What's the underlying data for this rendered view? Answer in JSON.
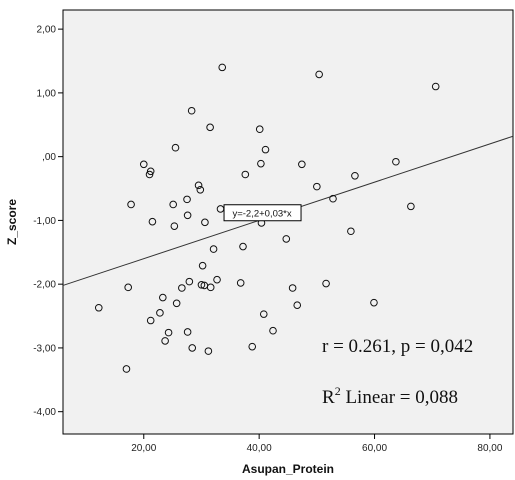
{
  "chart_data": {
    "type": "scatter",
    "xlabel": "Asupan_Protein",
    "ylabel": "Z_score",
    "xlim": [
      6,
      84
    ],
    "ylim": [
      -4.35,
      2.3
    ],
    "x_ticks": [
      "20,00",
      "40,00",
      "60,00",
      "80,00"
    ],
    "x_tick_values": [
      20,
      40,
      60,
      80
    ],
    "y_ticks": [
      "2,00",
      "1,00",
      ",00",
      "-1,00",
      "-2,00",
      "-3,00",
      "-4,00"
    ],
    "y_tick_values": [
      2,
      1,
      0,
      -1,
      -2,
      -3,
      -4
    ],
    "grid": false,
    "marker": "open-circle",
    "fit_line": {
      "intercept": -2.2,
      "slope": 0.03,
      "label": "y=-2,2+0,03*x"
    },
    "annotations": {
      "correlation": "r = 0.261, p = 0,042",
      "r2_prefix": "R",
      "r2_sup": "2",
      "r2_suffix": " Linear = 0,088"
    },
    "points": [
      {
        "x": 12.2,
        "y": -2.37
      },
      {
        "x": 17.0,
        "y": -3.33
      },
      {
        "x": 17.3,
        "y": -2.05
      },
      {
        "x": 17.8,
        "y": -0.75
      },
      {
        "x": 20.0,
        "y": -0.12
      },
      {
        "x": 21.0,
        "y": -0.28
      },
      {
        "x": 21.2,
        "y": -0.23
      },
      {
        "x": 21.5,
        "y": -1.02
      },
      {
        "x": 21.2,
        "y": -2.57
      },
      {
        "x": 22.8,
        "y": -2.45
      },
      {
        "x": 23.3,
        "y": -2.21
      },
      {
        "x": 23.7,
        "y": -2.89
      },
      {
        "x": 24.3,
        "y": -2.76
      },
      {
        "x": 25.1,
        "y": -0.75
      },
      {
        "x": 25.3,
        "y": -1.09
      },
      {
        "x": 25.5,
        "y": 0.14
      },
      {
        "x": 25.7,
        "y": -2.3
      },
      {
        "x": 26.6,
        "y": -2.06
      },
      {
        "x": 27.5,
        "y": -0.67
      },
      {
        "x": 27.6,
        "y": -0.92
      },
      {
        "x": 27.6,
        "y": -2.75
      },
      {
        "x": 27.9,
        "y": -1.96
      },
      {
        "x": 28.3,
        "y": 0.72
      },
      {
        "x": 28.4,
        "y": -3.0
      },
      {
        "x": 29.5,
        "y": -0.45
      },
      {
        "x": 29.8,
        "y": -0.52
      },
      {
        "x": 30.0,
        "y": -2.01
      },
      {
        "x": 30.2,
        "y": -1.71
      },
      {
        "x": 30.5,
        "y": -2.02
      },
      {
        "x": 30.6,
        "y": -1.03
      },
      {
        "x": 31.2,
        "y": -3.05
      },
      {
        "x": 31.5,
        "y": 0.46
      },
      {
        "x": 31.6,
        "y": -2.05
      },
      {
        "x": 32.1,
        "y": -1.45
      },
      {
        "x": 32.7,
        "y": -1.93
      },
      {
        "x": 33.3,
        "y": -0.82
      },
      {
        "x": 33.6,
        "y": 1.4
      },
      {
        "x": 36.8,
        "y": -1.98
      },
      {
        "x": 37.2,
        "y": -1.41
      },
      {
        "x": 37.6,
        "y": -0.28
      },
      {
        "x": 38.8,
        "y": -2.98
      },
      {
        "x": 40.1,
        "y": 0.43
      },
      {
        "x": 40.3,
        "y": -0.11
      },
      {
        "x": 40.4,
        "y": -1.04
      },
      {
        "x": 40.8,
        "y": -2.47
      },
      {
        "x": 41.1,
        "y": 0.11
      },
      {
        "x": 42.4,
        "y": -2.73
      },
      {
        "x": 44.7,
        "y": -1.29
      },
      {
        "x": 45.8,
        "y": -2.06
      },
      {
        "x": 46.6,
        "y": -2.33
      },
      {
        "x": 47.4,
        "y": -0.12
      },
      {
        "x": 50.0,
        "y": -0.47
      },
      {
        "x": 50.4,
        "y": 1.29
      },
      {
        "x": 51.6,
        "y": -1.99
      },
      {
        "x": 52.8,
        "y": -0.66
      },
      {
        "x": 55.9,
        "y": -1.17
      },
      {
        "x": 56.6,
        "y": -0.3
      },
      {
        "x": 59.9,
        "y": -2.29
      },
      {
        "x": 63.7,
        "y": -0.08
      },
      {
        "x": 66.3,
        "y": -0.78
      },
      {
        "x": 70.6,
        "y": 1.1
      }
    ]
  }
}
